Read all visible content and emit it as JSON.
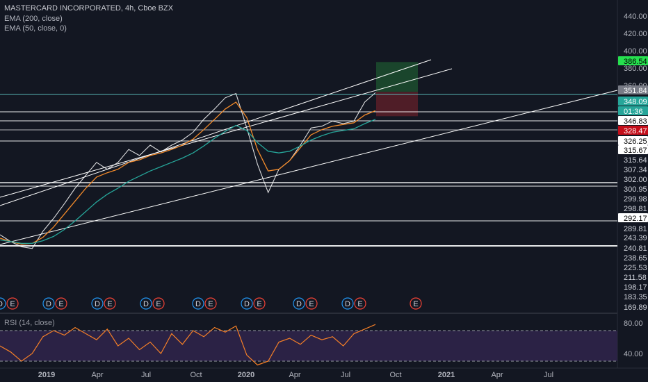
{
  "header": {
    "title": "MASTERCARD INCORPORATED, 4h, Cboe BZX",
    "study1": "EMA (200, close)",
    "study2": "EMA (50, close, 0)",
    "rsi_label": "RSI (14, close)"
  },
  "colors": {
    "background": "#131722",
    "price_line": "#ffffff",
    "ema50": "#f48b2a",
    "ema200": "#26a69a",
    "rsi_line": "#f57f27",
    "rsi_fill": "#2b2245",
    "green_zone": "#1c4d2e",
    "red_zone": "#5a1f28",
    "label_green": "#26e04f",
    "label_teal": "#26a69a",
    "label_red": "#c40e1a",
    "label_gray": "#787b86"
  },
  "chart_data": [
    {
      "type": "line",
      "title": "MASTERCARD INCORPORATED, 4h, Cboe BZX",
      "ylim": [
        160,
        450
      ],
      "price_scale_ticks": [
        "440.00",
        "420.00",
        "400.00",
        "380.00",
        "360.00"
      ],
      "x_tick_labels": [
        "2019",
        "Apr",
        "Jul",
        "Oct",
        "2020",
        "Apr",
        "Jul",
        "Oct",
        "2021",
        "Apr",
        "Jul"
      ],
      "price_labels": [
        {
          "text": "386.54",
          "style": "green"
        },
        {
          "text": "351.84",
          "style": "gray"
        },
        {
          "text": "348.09",
          "style": "teal"
        },
        {
          "text": "01:36",
          "style": "teal"
        },
        {
          "text": "346.83",
          "style": "white"
        },
        {
          "text": "328.47",
          "style": "red"
        },
        {
          "text": "326.25",
          "style": "white"
        },
        {
          "text": "315.67",
          "style": "white"
        },
        {
          "text": "315.64",
          "style": "plain"
        },
        {
          "text": "307.34",
          "style": "plain"
        },
        {
          "text": "302.00",
          "style": "plain"
        },
        {
          "text": "300.95",
          "style": "plain"
        },
        {
          "text": "299.98",
          "style": "plain"
        },
        {
          "text": "298.81",
          "style": "plain"
        },
        {
          "text": "292.17",
          "style": "white"
        },
        {
          "text": "289.81",
          "style": "plain"
        },
        {
          "text": "243.39",
          "style": "plain"
        },
        {
          "text": "240.81",
          "style": "plain"
        },
        {
          "text": "238.65",
          "style": "plain"
        },
        {
          "text": "225.53",
          "style": "plain"
        },
        {
          "text": "211.58",
          "style": "plain"
        },
        {
          "text": "198.17",
          "style": "plain"
        },
        {
          "text": "183.35",
          "style": "plain"
        },
        {
          "text": "169.89",
          "style": "plain"
        }
      ],
      "series": [
        {
          "name": "Price",
          "values": [
            186,
            178,
            172,
            170,
            190,
            205,
            222,
            240,
            255,
            270,
            262,
            270,
            285,
            278,
            290,
            282,
            290,
            296,
            305,
            320,
            332,
            345,
            350,
            310,
            268,
            235,
            262,
            272,
            290,
            310,
            312,
            318,
            315,
            318,
            340,
            351
          ]
        },
        {
          "name": "EMA (50, close, 0)",
          "values": [
            182,
            178,
            175,
            176,
            183,
            195,
            210,
            225,
            240,
            253,
            258,
            262,
            270,
            273,
            278,
            281,
            285,
            290,
            297,
            308,
            320,
            332,
            340,
            322,
            285,
            260,
            262,
            272,
            287,
            302,
            308,
            312,
            314,
            316,
            325,
            330
          ]
        },
        {
          "name": "EMA (200, close)",
          "values": [
            180,
            178,
            176,
            176,
            179,
            184,
            192,
            202,
            213,
            224,
            233,
            240,
            248,
            254,
            260,
            265,
            270,
            275,
            281,
            289,
            298,
            306,
            313,
            307,
            293,
            283,
            281,
            283,
            289,
            296,
            301,
            305,
            307,
            309,
            315,
            320
          ]
        }
      ],
      "trade_box": {
        "target": 386.54,
        "entry": 351.84,
        "stop": 328.47
      }
    },
    {
      "type": "line",
      "title": "RSI (14, close)",
      "ylim": [
        20,
        90
      ],
      "y_ticks": [
        "80.00",
        "40.00"
      ],
      "bands": [
        70,
        30
      ],
      "series": [
        {
          "name": "RSI (14, close)",
          "values": [
            50,
            42,
            30,
            40,
            62,
            70,
            64,
            74,
            66,
            58,
            72,
            50,
            60,
            45,
            55,
            40,
            66,
            52,
            70,
            62,
            74,
            68,
            76,
            38,
            25,
            30,
            55,
            60,
            52,
            64,
            58,
            62,
            50,
            66,
            72,
            78
          ]
        }
      ]
    }
  ],
  "earnings_markers": [
    {
      "items": [
        "D",
        "E"
      ]
    },
    {
      "items": [
        "D",
        "E"
      ]
    },
    {
      "items": [
        "D",
        "E"
      ]
    },
    {
      "items": [
        "D",
        "E"
      ]
    },
    {
      "items": [
        "D",
        "E"
      ]
    },
    {
      "items": [
        "D",
        "E"
      ]
    },
    {
      "items": [
        "D",
        "E"
      ]
    },
    {
      "items": [
        "D",
        "E"
      ]
    },
    {
      "items": [
        "E"
      ]
    }
  ]
}
